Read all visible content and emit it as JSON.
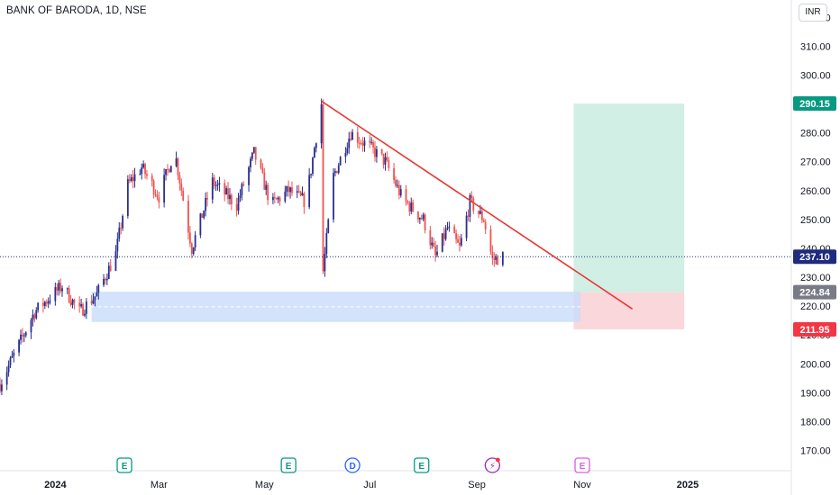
{
  "header": {
    "symbol": "BANK OF BARODA, 1D, NSE",
    "currency": "INR"
  },
  "colors": {
    "up": "#2a2e8c",
    "down": "#ef5350",
    "trendline": "#e53935",
    "target_zone": "#cfeee3",
    "stop_zone": "#fad5d8",
    "support_zone": "#c9dcfb",
    "last_price": "#1e2b7e",
    "target_label": "#089981",
    "stop_label": "#f23645",
    "entry_label": "#787b86"
  },
  "chart_data": {
    "type": "candlestick",
    "y_axis": {
      "min": 163,
      "max": 326,
      "ticks": [
        170,
        180,
        190,
        200,
        210,
        220,
        230,
        240,
        250,
        260,
        270,
        280,
        290,
        300,
        310,
        320
      ],
      "side": "right"
    },
    "x_axis": {
      "range": [
        "2023-11-30",
        "2025-03-02"
      ],
      "labels": [
        {
          "date": "2024-01-01",
          "text": "2024",
          "bold": true
        },
        {
          "date": "2024-03-01",
          "text": "Mar"
        },
        {
          "date": "2024-05-01",
          "text": "May"
        },
        {
          "date": "2024-07-01",
          "text": "Jul"
        },
        {
          "date": "2024-09-01",
          "text": "Sep"
        },
        {
          "date": "2024-11-01",
          "text": "Nov"
        },
        {
          "date": "2025-01-01",
          "text": "2025",
          "bold": true
        }
      ]
    },
    "path": [
      [
        "2023-11-30",
        193
      ],
      [
        "2023-12-20",
        218
      ],
      [
        "2024-01-05",
        227
      ],
      [
        "2024-01-15",
        218
      ],
      [
        "2024-01-25",
        224
      ],
      [
        "2024-02-05",
        238
      ],
      [
        "2024-02-12",
        262
      ],
      [
        "2024-02-20",
        268
      ],
      [
        "2024-03-01",
        258
      ],
      [
        "2024-03-10",
        274
      ],
      [
        "2024-03-20",
        240
      ],
      [
        "2024-04-01",
        263
      ],
      [
        "2024-04-15",
        255
      ],
      [
        "2024-04-25",
        273
      ],
      [
        "2024-05-05",
        255
      ],
      [
        "2024-05-15",
        260
      ],
      [
        "2024-05-25",
        256
      ],
      [
        "2024-06-03",
        290
      ],
      [
        "2024-06-04",
        232
      ],
      [
        "2024-06-10",
        265
      ],
      [
        "2024-06-20",
        280
      ],
      [
        "2024-07-01",
        275
      ],
      [
        "2024-07-10",
        270
      ],
      [
        "2024-07-20",
        257
      ],
      [
        "2024-08-01",
        250
      ],
      [
        "2024-08-08",
        237
      ],
      [
        "2024-08-15",
        247
      ],
      [
        "2024-08-22",
        240
      ],
      [
        "2024-08-28",
        256
      ],
      [
        "2024-09-05",
        250
      ],
      [
        "2024-09-10",
        236
      ],
      [
        "2024-09-16",
        237
      ]
    ],
    "series": [
      {
        "name": "",
        "type": "trendline",
        "points": [
          [
            "2024-06-03",
            291
          ],
          [
            "2024-11-30",
            219
          ]
        ]
      },
      {
        "name": "",
        "type": "target_zone",
        "from": "2024-10-27",
        "to": "2024-12-30",
        "low": 224.84,
        "high": 290.15
      },
      {
        "name": "",
        "type": "stop_zone",
        "from": "2024-10-27",
        "to": "2024-12-30",
        "low": 211.95,
        "high": 224.84
      },
      {
        "name": "",
        "type": "support_zone",
        "from": "2024-01-22",
        "to": "2024-10-31",
        "low": 214.5,
        "high": 225
      },
      {
        "name": "",
        "type": "last_price_line",
        "value": 237.1
      }
    ],
    "price_labels": [
      {
        "value": 290.15,
        "text": "290.15",
        "color_key": "target_label"
      },
      {
        "value": 237.1,
        "text": "237.10",
        "color_key": "last_price"
      },
      {
        "value": 224.84,
        "text": "224.84",
        "color_key": "entry_label"
      },
      {
        "value": 211.95,
        "text": "211.95",
        "color_key": "stop_label"
      }
    ],
    "events": [
      {
        "date": "2024-02-10",
        "letter": "E",
        "kind": "earnings"
      },
      {
        "date": "2024-05-15",
        "letter": "E",
        "kind": "earnings"
      },
      {
        "date": "2024-06-21",
        "letter": "D",
        "kind": "dividend"
      },
      {
        "date": "2024-07-31",
        "letter": "E",
        "kind": "earnings"
      },
      {
        "date": "2024-09-10",
        "letter": "",
        "kind": "split"
      },
      {
        "date": "2024-11-01",
        "letter": "E",
        "kind": "earnings-upcoming"
      }
    ]
  }
}
